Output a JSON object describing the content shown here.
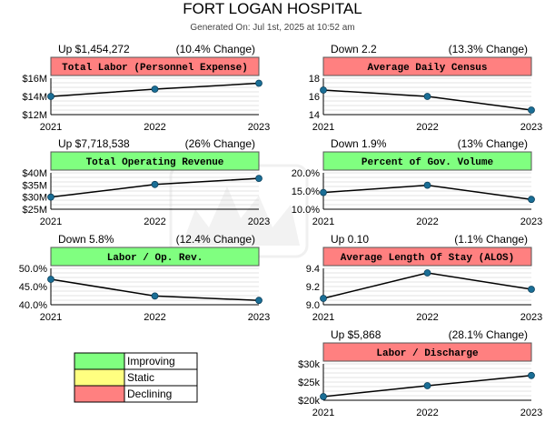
{
  "title": "FORT LOGAN HOSPITAL",
  "generated": "Generated On: Jul 1st, 2025 at 10:52 am",
  "colors": {
    "improving": "#80ff80",
    "static": "#ffff80",
    "declining": "#ff8080",
    "line": "#000000",
    "point": "#1a6e96",
    "grid": "#c8c8c8"
  },
  "legend": [
    {
      "label": "Improving",
      "color": "#80ff80"
    },
    {
      "label": "Static",
      "color": "#ffff80"
    },
    {
      "label": "Declining",
      "color": "#ff8080"
    }
  ],
  "chart_data": [
    {
      "type": "line",
      "title": "Total Labor (Personnel Expense)",
      "status": "declining",
      "summary": "Up $1,454,272",
      "change": "(10.4% Change)",
      "x": [
        "2021",
        "2022",
        "2023"
      ],
      "values": [
        14000000,
        14800000,
        15450000
      ],
      "ylim": [
        12000000,
        16000000
      ],
      "yticks": [
        12000000,
        14000000,
        16000000
      ],
      "ytick_labels": [
        "$12M",
        "$14M",
        "$16M"
      ],
      "grid": true
    },
    {
      "type": "line",
      "title": "Average Daily Census",
      "status": "declining",
      "summary": "Down 2.2",
      "change": "(13.3% Change)",
      "x": [
        "2021",
        "2022",
        "2023"
      ],
      "values": [
        16.7,
        16.0,
        14.5
      ],
      "ylim": [
        14,
        18
      ],
      "yticks": [
        14,
        16,
        18
      ],
      "ytick_labels": [
        "14",
        "16",
        "18"
      ],
      "grid": true
    },
    {
      "type": "line",
      "title": "Total Operating Revenue",
      "status": "improving",
      "summary": "Up $7,718,538",
      "change": "(26% Change)",
      "x": [
        "2021",
        "2022",
        "2023"
      ],
      "values": [
        30000000,
        35200000,
        37700000
      ],
      "ylim": [
        25000000,
        40000000
      ],
      "yticks": [
        25000000,
        30000000,
        35000000,
        40000000
      ],
      "ytick_labels": [
        "$25M",
        "$30M",
        "$35M",
        "$40M"
      ],
      "grid": true
    },
    {
      "type": "line",
      "title": "Percent of Gov. Volume",
      "status": "improving",
      "summary": "Down 1.9%",
      "change": "(13% Change)",
      "x": [
        "2021",
        "2022",
        "2023"
      ],
      "values": [
        14.6,
        16.6,
        12.7
      ],
      "ylim": [
        10,
        20
      ],
      "yticks": [
        10,
        15,
        20
      ],
      "ytick_labels": [
        "10.0%",
        "15.0%",
        "20.0%"
      ],
      "grid": true
    },
    {
      "type": "line",
      "title": "Labor / Op. Rev.",
      "status": "improving",
      "summary": "Down 5.8%",
      "change": "(12.4% Change)",
      "x": [
        "2021",
        "2022",
        "2023"
      ],
      "values": [
        47.0,
        42.4,
        41.2
      ],
      "ylim": [
        40,
        50
      ],
      "yticks": [
        40,
        45,
        50
      ],
      "ytick_labels": [
        "40.0%",
        "45.0%",
        "50.0%"
      ],
      "grid": true
    },
    {
      "type": "line",
      "title": "Average Length Of Stay (ALOS)",
      "status": "declining",
      "summary": "Up 0.10",
      "change": "(1.1% Change)",
      "x": [
        "2021",
        "2022",
        "2023"
      ],
      "values": [
        9.07,
        9.35,
        9.17
      ],
      "ylim": [
        9.0,
        9.4
      ],
      "yticks": [
        9.0,
        9.2,
        9.4
      ],
      "ytick_labels": [
        "9.0",
        "9.2",
        "9.4"
      ],
      "grid": true
    },
    {
      "type": "line",
      "title": "Labor / Discharge",
      "status": "declining",
      "summary": "Up $5,868",
      "change": "(28.1% Change)",
      "x": [
        "2021",
        "2022",
        "2023"
      ],
      "values": [
        21000,
        24000,
        26800
      ],
      "ylim": [
        20000,
        30000
      ],
      "yticks": [
        20000,
        25000,
        30000
      ],
      "ytick_labels": [
        "$20k",
        "$25k",
        "$30k"
      ],
      "grid": true
    }
  ]
}
